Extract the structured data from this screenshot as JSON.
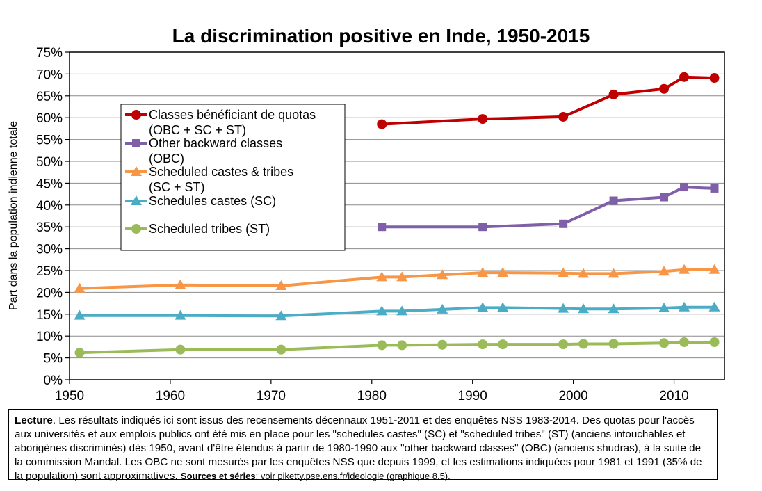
{
  "chart_data": {
    "type": "line",
    "title": "La discrimination positive en Inde, 1950-2015",
    "ylabel": "Part dans la population indienne totale",
    "xlabel": "",
    "xlim": [
      1950,
      2015
    ],
    "ylim": [
      0,
      0.75
    ],
    "x_ticks": [
      1950,
      1960,
      1970,
      1980,
      1990,
      2000,
      2010
    ],
    "y_ticks": [
      "0%",
      "5%",
      "10%",
      "15%",
      "20%",
      "25%",
      "30%",
      "35%",
      "40%",
      "45%",
      "50%",
      "55%",
      "60%",
      "65%",
      "70%",
      "75%"
    ],
    "grid": "horizontal",
    "legend_position": "upper-left",
    "series": [
      {
        "name": "Classes bénéficiant de quotas (OBC + SC + ST)",
        "legend_lines": [
          "Classes bénéficiant de quotas",
          "(OBC + SC + ST)"
        ],
        "color": "#c00000",
        "marker": "circle",
        "points": [
          [
            1981,
            0.585
          ],
          [
            1991,
            0.597
          ],
          [
            1999,
            0.602
          ],
          [
            2004,
            0.653
          ],
          [
            2009,
            0.666
          ],
          [
            2011,
            0.693
          ],
          [
            2014,
            0.691
          ]
        ]
      },
      {
        "name": "Other backward classes (OBC)",
        "legend_lines": [
          "Other backward classes",
          "(OBC)"
        ],
        "color": "#7f5fa8",
        "marker": "square",
        "points": [
          [
            1981,
            0.35
          ],
          [
            1991,
            0.35
          ],
          [
            1999,
            0.357
          ],
          [
            2004,
            0.41
          ],
          [
            2009,
            0.418
          ],
          [
            2011,
            0.441
          ],
          [
            2014,
            0.438
          ]
        ]
      },
      {
        "name": "Scheduled castes & tribes (SC + ST)",
        "legend_lines": [
          "Scheduled castes & tribes",
          "(SC + ST)"
        ],
        "color": "#f79646",
        "marker": "triangle",
        "points": [
          [
            1951,
            0.209
          ],
          [
            1961,
            0.217
          ],
          [
            1971,
            0.215
          ],
          [
            1981,
            0.235
          ],
          [
            1983,
            0.235
          ],
          [
            1987,
            0.24
          ],
          [
            1991,
            0.245
          ],
          [
            1993,
            0.245
          ],
          [
            1999,
            0.244
          ],
          [
            2001,
            0.243
          ],
          [
            2004,
            0.243
          ],
          [
            2009,
            0.248
          ],
          [
            2011,
            0.252
          ],
          [
            2014,
            0.252
          ]
        ]
      },
      {
        "name": "Schedules castes (SC)",
        "legend_lines": [
          "Schedules castes (SC)"
        ],
        "color": "#4bacc6",
        "marker": "triangle",
        "points": [
          [
            1951,
            0.147
          ],
          [
            1961,
            0.147
          ],
          [
            1971,
            0.146
          ],
          [
            1981,
            0.157
          ],
          [
            1983,
            0.157
          ],
          [
            1987,
            0.161
          ],
          [
            1991,
            0.165
          ],
          [
            1993,
            0.165
          ],
          [
            1999,
            0.163
          ],
          [
            2001,
            0.162
          ],
          [
            2004,
            0.162
          ],
          [
            2009,
            0.164
          ],
          [
            2011,
            0.166
          ],
          [
            2014,
            0.166
          ]
        ]
      },
      {
        "name": "Scheduled tribes (ST)",
        "legend_lines": [
          "Scheduled tribes (ST)"
        ],
        "color": "#9bbb59",
        "marker": "circle",
        "points": [
          [
            1951,
            0.062
          ],
          [
            1961,
            0.069
          ],
          [
            1971,
            0.069
          ],
          [
            1981,
            0.079
          ],
          [
            1983,
            0.079
          ],
          [
            1987,
            0.08
          ],
          [
            1991,
            0.081
          ],
          [
            1993,
            0.081
          ],
          [
            1999,
            0.081
          ],
          [
            2001,
            0.082
          ],
          [
            2004,
            0.082
          ],
          [
            2009,
            0.084
          ],
          [
            2011,
            0.086
          ],
          [
            2014,
            0.086
          ]
        ]
      }
    ]
  },
  "note": {
    "lecture_label": "Lecture",
    "text": ". Les résultats indiqués ici sont issus des recensements décennaux 1951-2011 et des enquêtes NSS 1983-2014. Des quotas pour l'accès aux universités et aux emplois publics ont été mis en place pour les \"schedules castes\" (SC) et \"scheduled tribes\" (ST)  (anciens intouchables et aborigènes discriminés) dès 1950, avant d'être étendus à partir de 1980-1990 aux \"other backward classes\" (OBC) (anciens shudras), à la suite de la commission Mandal. Les OBC ne sont mesurés par les enquêtes NSS que depuis 1999, et les estimations indiquées pour 1981 et 1991 (35% de la population) sont approximatives. ",
    "sources_label": "Sources et séries",
    "sources_text": ": voir piketty.pse.ens.fr/ideologie (graphique 8.5)."
  }
}
